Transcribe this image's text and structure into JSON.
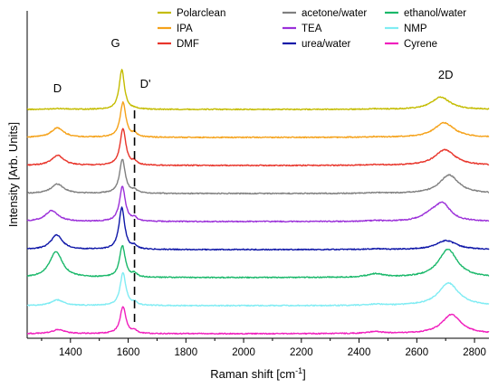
{
  "chart_data": {
    "type": "line",
    "xlabel_main": "Raman shift [cm",
    "xlabel_sup": "-1",
    "xlabel_tail": "]",
    "ylabel": "Intensity [Arb. Units]",
    "xlim": [
      1250,
      2850
    ],
    "x_ticks": [
      1400,
      1600,
      1800,
      2000,
      2200,
      2400,
      2600,
      2800
    ],
    "grid": false,
    "legend_position": "top",
    "annotations": [
      {
        "text": "D",
        "x": 1355
      },
      {
        "text": "G",
        "x": 1578
      },
      {
        "text": "D'",
        "x": 1622
      },
      {
        "text": "2D",
        "x": 2700
      }
    ],
    "dprime_marker_x": 1622,
    "series": [
      {
        "name": "Polarclean",
        "color": "#c4bc00",
        "offset": 8,
        "peaks": [
          {
            "c": 1355,
            "h": 0.04,
            "w": 30
          },
          {
            "c": 1578,
            "h": 1.75,
            "w": 11
          },
          {
            "c": 1622,
            "h": 0.02,
            "w": 10
          },
          {
            "c": 2456,
            "h": 0.02,
            "w": 30
          },
          {
            "c": 2683,
            "h": 0.55,
            "w": 38
          }
        ]
      },
      {
        "name": "IPA",
        "color": "#f5a21a",
        "offset": 7,
        "peaks": [
          {
            "c": 1355,
            "h": 0.42,
            "w": 26
          },
          {
            "c": 1582,
            "h": 1.55,
            "w": 12
          },
          {
            "c": 1622,
            "h": 0.15,
            "w": 9
          },
          {
            "c": 2456,
            "h": 0.02,
            "w": 30
          },
          {
            "c": 2695,
            "h": 0.65,
            "w": 42
          }
        ]
      },
      {
        "name": "DMF",
        "color": "#e8352b",
        "offset": 6,
        "peaks": [
          {
            "c": 1356,
            "h": 0.45,
            "w": 25
          },
          {
            "c": 1582,
            "h": 1.62,
            "w": 12
          },
          {
            "c": 1622,
            "h": 0.15,
            "w": 9
          },
          {
            "c": 2456,
            "h": 0.03,
            "w": 30
          },
          {
            "c": 2698,
            "h": 0.7,
            "w": 42
          }
        ]
      },
      {
        "name": "acetone/water",
        "color": "#808080",
        "offset": 5,
        "peaks": [
          {
            "c": 1355,
            "h": 0.42,
            "w": 26
          },
          {
            "c": 1580,
            "h": 1.5,
            "w": 12
          },
          {
            "c": 1622,
            "h": 0.13,
            "w": 9
          },
          {
            "c": 2456,
            "h": 0.03,
            "w": 30
          },
          {
            "c": 2712,
            "h": 0.82,
            "w": 40
          }
        ]
      },
      {
        "name": "TEA",
        "color": "#9b30d9",
        "offset": 4,
        "peaks": [
          {
            "c": 1335,
            "h": 0.48,
            "w": 27
          },
          {
            "c": 1580,
            "h": 1.55,
            "w": 12
          },
          {
            "c": 1622,
            "h": 0.15,
            "w": 9
          },
          {
            "c": 2456,
            "h": 0.03,
            "w": 30
          },
          {
            "c": 2650,
            "h": 0.28,
            "w": 38
          },
          {
            "c": 2690,
            "h": 0.72,
            "w": 32
          }
        ]
      },
      {
        "name": "urea/water",
        "color": "#0f17a8",
        "offset": 3,
        "peaks": [
          {
            "c": 1352,
            "h": 0.65,
            "w": 24
          },
          {
            "c": 1578,
            "h": 1.85,
            "w": 12
          },
          {
            "c": 1622,
            "h": 0.14,
            "w": 9
          },
          {
            "c": 2456,
            "h": 0.03,
            "w": 30
          },
          {
            "c": 2702,
            "h": 0.4,
            "w": 42
          }
        ]
      },
      {
        "name": "ethanol/water",
        "color": "#1ab86a",
        "offset": 2,
        "peaks": [
          {
            "c": 1350,
            "h": 1.15,
            "w": 27
          },
          {
            "c": 1580,
            "h": 1.4,
            "w": 12
          },
          {
            "c": 1622,
            "h": 0.15,
            "w": 9
          },
          {
            "c": 2456,
            "h": 0.15,
            "w": 35
          },
          {
            "c": 2708,
            "h": 1.25,
            "w": 40
          }
        ]
      },
      {
        "name": "NMP",
        "color": "#80ecf3",
        "offset": 1,
        "peaks": [
          {
            "c": 1355,
            "h": 0.25,
            "w": 26
          },
          {
            "c": 1582,
            "h": 1.45,
            "w": 12
          },
          {
            "c": 1622,
            "h": 0.12,
            "w": 9
          },
          {
            "c": 2456,
            "h": 0.05,
            "w": 35
          },
          {
            "c": 2710,
            "h": 1.0,
            "w": 42
          }
        ]
      },
      {
        "name": "Cyrene",
        "color": "#f01fbd",
        "offset": 0,
        "peaks": [
          {
            "c": 1358,
            "h": 0.18,
            "w": 26
          },
          {
            "c": 1582,
            "h": 1.2,
            "w": 12
          },
          {
            "c": 1622,
            "h": 0.12,
            "w": 9
          },
          {
            "c": 2456,
            "h": 0.08,
            "w": 35
          },
          {
            "c": 2720,
            "h": 0.85,
            "w": 40
          }
        ]
      }
    ]
  }
}
